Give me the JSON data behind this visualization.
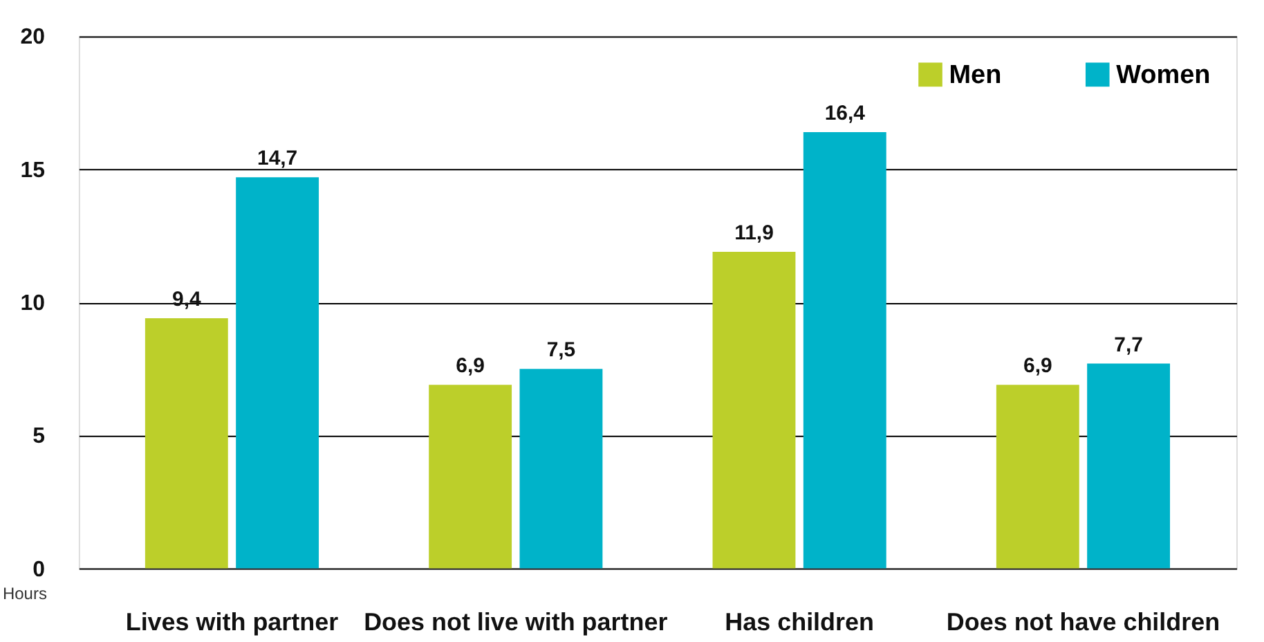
{
  "chart_data": {
    "type": "bar",
    "ylabel": "Hours",
    "categories": [
      "Lives with partner",
      "Does not live with partner",
      "Has children",
      "Does not have children"
    ],
    "series": [
      {
        "name": "Men",
        "color": "#bccf2a",
        "values": [
          9.4,
          6.9,
          11.9,
          6.9
        ],
        "value_labels": [
          "9,4",
          "6,9",
          "11,9",
          "6,9"
        ]
      },
      {
        "name": "Women",
        "color": "#00b3c9",
        "values": [
          14.7,
          7.5,
          16.4,
          7.7
        ],
        "value_labels": [
          "14,7",
          "7,5",
          "16,4",
          "7,7"
        ]
      }
    ],
    "ylim": [
      0,
      20
    ],
    "yticks": [
      0,
      5,
      10,
      15,
      20
    ],
    "grid": "y",
    "legend": "top right"
  }
}
